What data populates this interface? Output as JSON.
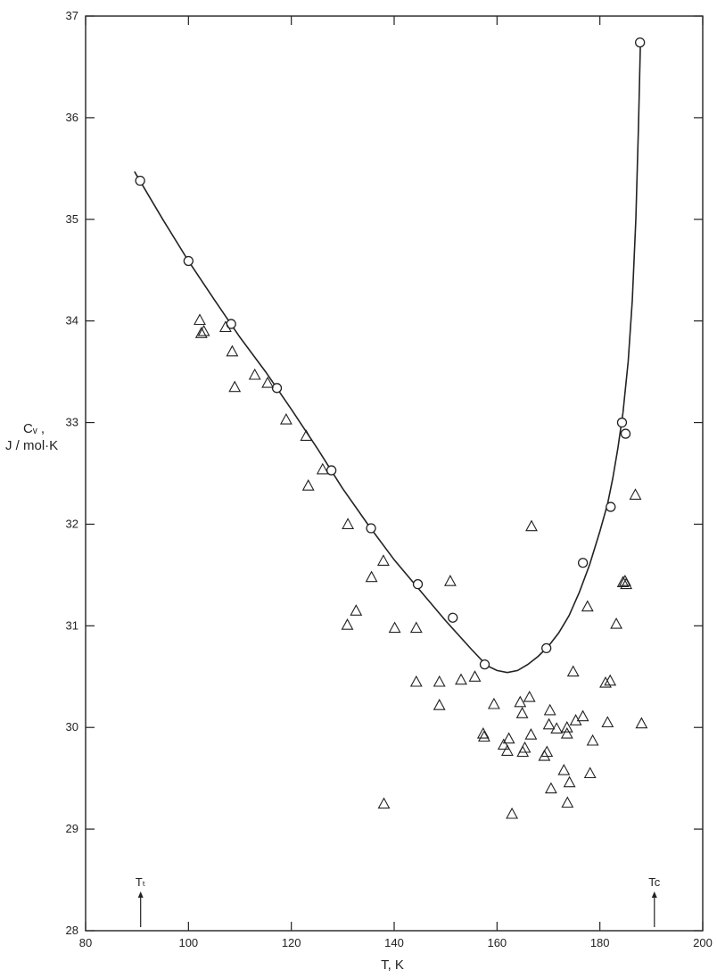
{
  "chart_data": {
    "type": "scatter",
    "xlabel": "T, K",
    "ylabel_line1": "Cᵥ ,",
    "ylabel_line2": "J / mol·K",
    "xlim": [
      80,
      200
    ],
    "ylim": [
      28,
      37
    ],
    "xticks": [
      80,
      100,
      120,
      140,
      160,
      180,
      200
    ],
    "yticks": [
      28,
      29,
      30,
      31,
      32,
      33,
      34,
      35,
      36,
      37
    ],
    "grid": false,
    "markers": [
      {
        "label": "Tₜ",
        "x": 90.7
      },
      {
        "label": "Tc",
        "x": 190.6
      }
    ],
    "series": [
      {
        "marker": "circle",
        "points": [
          [
            90.6,
            35.38
          ],
          [
            100.0,
            34.59
          ],
          [
            108.3,
            33.97
          ],
          [
            117.2,
            33.34
          ],
          [
            127.8,
            32.53
          ],
          [
            135.5,
            31.96
          ],
          [
            144.6,
            31.41
          ],
          [
            151.4,
            31.08
          ],
          [
            157.6,
            30.62
          ],
          [
            169.6,
            30.78
          ],
          [
            176.7,
            31.62
          ],
          [
            182.1,
            32.17
          ],
          [
            184.3,
            33.0
          ],
          [
            185.0,
            32.89
          ],
          [
            187.8,
            36.74
          ]
        ]
      },
      {
        "marker": "triangle",
        "points": [
          [
            102.2,
            34.01
          ],
          [
            102.5,
            33.88
          ],
          [
            103.0,
            33.9
          ],
          [
            107.2,
            33.94
          ],
          [
            108.5,
            33.7
          ],
          [
            109.0,
            33.35
          ],
          [
            112.9,
            33.47
          ],
          [
            115.4,
            33.39
          ],
          [
            119.0,
            33.03
          ],
          [
            122.9,
            32.87
          ],
          [
            123.3,
            32.38
          ],
          [
            126.1,
            32.54
          ],
          [
            130.9,
            31.01
          ],
          [
            131.0,
            32.0
          ],
          [
            132.6,
            31.15
          ],
          [
            135.6,
            31.48
          ],
          [
            137.9,
            31.64
          ],
          [
            138.0,
            29.25
          ],
          [
            140.1,
            30.98
          ],
          [
            144.3,
            30.98
          ],
          [
            144.3,
            30.45
          ],
          [
            148.8,
            30.45
          ],
          [
            148.8,
            30.22
          ],
          [
            150.9,
            31.44
          ],
          [
            153.0,
            30.47
          ],
          [
            155.7,
            30.5
          ],
          [
            157.3,
            29.94
          ],
          [
            157.5,
            29.91
          ],
          [
            159.4,
            30.23
          ],
          [
            161.3,
            29.83
          ],
          [
            162.0,
            29.77
          ],
          [
            162.3,
            29.89
          ],
          [
            162.9,
            29.15
          ],
          [
            164.5,
            30.25
          ],
          [
            164.9,
            30.14
          ],
          [
            165.0,
            29.76
          ],
          [
            165.4,
            29.8
          ],
          [
            166.3,
            30.3
          ],
          [
            166.6,
            29.93
          ],
          [
            166.7,
            31.98
          ],
          [
            169.2,
            29.72
          ],
          [
            169.7,
            29.76
          ],
          [
            170.1,
            30.03
          ],
          [
            170.3,
            30.17
          ],
          [
            170.5,
            29.4
          ],
          [
            171.6,
            29.99
          ],
          [
            173.0,
            29.58
          ],
          [
            173.6,
            30.0
          ],
          [
            173.6,
            29.94
          ],
          [
            173.7,
            29.26
          ],
          [
            174.1,
            29.46
          ],
          [
            174.8,
            30.55
          ],
          [
            175.3,
            30.07
          ],
          [
            176.7,
            30.11
          ],
          [
            177.6,
            31.19
          ],
          [
            178.1,
            29.55
          ],
          [
            178.6,
            29.87
          ],
          [
            181.1,
            30.44
          ],
          [
            181.5,
            30.05
          ],
          [
            182.0,
            30.46
          ],
          [
            183.2,
            31.02
          ],
          [
            184.5,
            31.43
          ],
          [
            184.9,
            31.44
          ],
          [
            185.1,
            31.41
          ],
          [
            186.9,
            32.29
          ],
          [
            188.1,
            30.04
          ]
        ]
      },
      {
        "marker": "line",
        "points": [
          [
            89.5,
            35.47
          ],
          [
            95,
            35.0
          ],
          [
            100,
            34.59
          ],
          [
            105,
            34.21
          ],
          [
            110,
            33.84
          ],
          [
            115,
            33.5
          ],
          [
            120,
            33.13
          ],
          [
            125,
            32.75
          ],
          [
            130,
            32.35
          ],
          [
            135,
            31.99
          ],
          [
            140,
            31.65
          ],
          [
            145,
            31.35
          ],
          [
            150,
            31.05
          ],
          [
            155,
            30.77
          ],
          [
            158,
            30.61
          ],
          [
            160,
            30.56
          ],
          [
            162,
            30.54
          ],
          [
            164,
            30.56
          ],
          [
            166,
            30.62
          ],
          [
            168,
            30.7
          ],
          [
            170,
            30.8
          ],
          [
            172,
            30.93
          ],
          [
            174,
            31.1
          ],
          [
            176,
            31.33
          ],
          [
            178,
            31.6
          ],
          [
            180,
            31.93
          ],
          [
            181.5,
            32.2
          ],
          [
            182.5,
            32.45
          ],
          [
            183.5,
            32.75
          ],
          [
            184.5,
            33.1
          ],
          [
            185.5,
            33.6
          ],
          [
            186.3,
            34.2
          ],
          [
            187.0,
            35.0
          ],
          [
            187.5,
            35.9
          ],
          [
            187.9,
            36.76
          ]
        ]
      }
    ]
  }
}
